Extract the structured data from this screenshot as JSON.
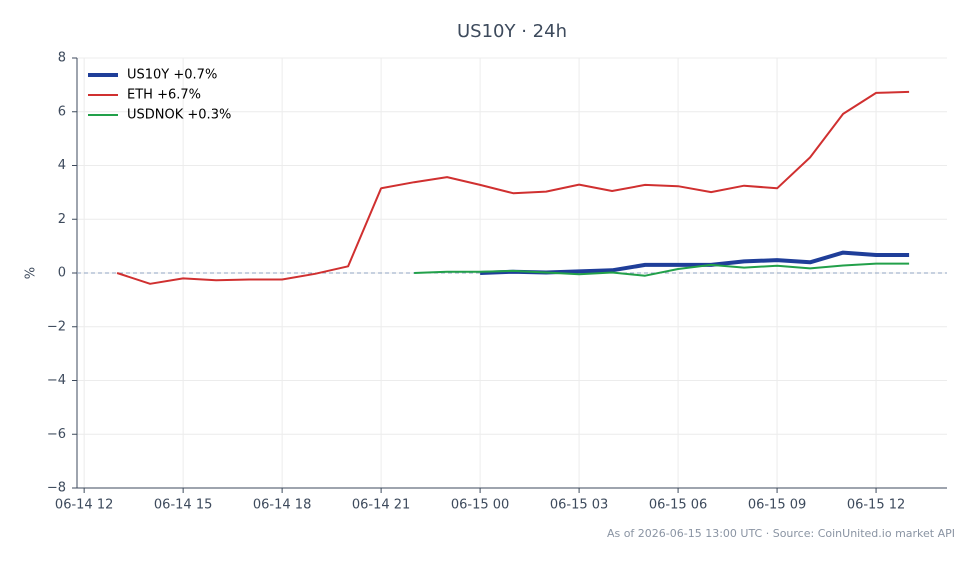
{
  "chart_data": {
    "type": "line",
    "title": "US10Y · 24h",
    "ylabel": "%",
    "footnote": "As of 2026-06-15 13:00 UTC · Source: CoinUnited.io market API",
    "x": [
      "2026-06-14 13:00",
      "2026-06-14 14:00",
      "2026-06-14 15:00",
      "2026-06-14 16:00",
      "2026-06-14 17:00",
      "2026-06-14 18:00",
      "2026-06-14 19:00",
      "2026-06-14 20:00",
      "2026-06-14 21:00",
      "2026-06-14 22:00",
      "2026-06-14 23:00",
      "2026-06-15 00:00",
      "2026-06-15 01:00",
      "2026-06-15 02:00",
      "2026-06-15 03:00",
      "2026-06-15 04:00",
      "2026-06-15 05:00",
      "2026-06-15 06:00",
      "2026-06-15 07:00",
      "2026-06-15 08:00",
      "2026-06-15 09:00",
      "2026-06-15 10:00",
      "2026-06-15 11:00",
      "2026-06-15 12:00",
      "2026-06-15 13:00"
    ],
    "series": [
      {
        "name": "US10Y +0.7%",
        "color": "#1f3e99",
        "line_width": 4,
        "values": [
          null,
          null,
          null,
          null,
          null,
          null,
          null,
          null,
          null,
          null,
          null,
          0,
          0.05,
          0.02,
          0.06,
          0.1,
          0.3,
          0.3,
          0.3,
          0.43,
          0.48,
          0.4,
          0.76,
          0.67,
          0.67
        ]
      },
      {
        "name": "ETH +6.7%",
        "color": "#d03030",
        "line_width": 2,
        "values": [
          0,
          -0.4,
          -0.2,
          -0.27,
          -0.24,
          -0.24,
          -0.03,
          0.25,
          3.15,
          3.38,
          3.57,
          3.28,
          2.97,
          3.03,
          3.29,
          3.05,
          3.28,
          3.23,
          3.01,
          3.25,
          3.15,
          4.3,
          5.92,
          6.7,
          6.74
        ]
      },
      {
        "name": "USDNOK +0.3%",
        "color": "#22a04a",
        "line_width": 2,
        "values": [
          null,
          null,
          null,
          null,
          null,
          null,
          null,
          null,
          null,
          0,
          0.05,
          0.05,
          0.08,
          0.02,
          -0.05,
          0.02,
          -0.1,
          0.15,
          0.3,
          0.2,
          0.27,
          0.17,
          0.28,
          0.35,
          0.35
        ]
      }
    ],
    "xlim": [
      "2026-06-14 11:47",
      "2026-06-15 14:09"
    ],
    "xticks": [
      {
        "value": "2026-06-14 12:00",
        "label": "06-14 12"
      },
      {
        "value": "2026-06-14 15:00",
        "label": "06-14 15"
      },
      {
        "value": "2026-06-14 18:00",
        "label": "06-14 18"
      },
      {
        "value": "2026-06-14 21:00",
        "label": "06-14 21"
      },
      {
        "value": "2026-06-15 00:00",
        "label": "06-15 00"
      },
      {
        "value": "2026-06-15 03:00",
        "label": "06-15 03"
      },
      {
        "value": "2026-06-15 06:00",
        "label": "06-15 06"
      },
      {
        "value": "2026-06-15 09:00",
        "label": "06-15 09"
      },
      {
        "value": "2026-06-15 12:00",
        "label": "06-15 12"
      }
    ],
    "ylim": [
      -8,
      8
    ],
    "yticks": [
      {
        "value": -8,
        "label": "−8"
      },
      {
        "value": -6,
        "label": "−6"
      },
      {
        "value": -4,
        "label": "−4"
      },
      {
        "value": -2,
        "label": "−2"
      },
      0,
      2,
      4,
      6,
      8
    ],
    "grid": true,
    "zero_line": true,
    "legend": "upper left"
  }
}
